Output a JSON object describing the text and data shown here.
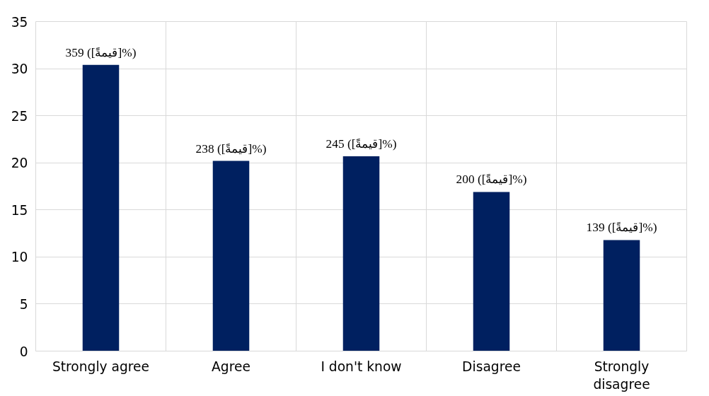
{
  "chart_data": {
    "type": "bar",
    "categories": [
      "Strongly agree",
      "Agree",
      "I don't know",
      "Disagree",
      "Strongly disagree"
    ],
    "values": [
      30.4,
      20.2,
      20.7,
      16.9,
      11.8
    ],
    "annotations": [
      {
        "text": "359 ([قيمةً]%)",
        "x": "Strongly agree",
        "y": 30.4
      },
      {
        "text": "238 ([قيمةً]%)",
        "x": "Agree",
        "y": 20.2
      },
      {
        "text": "245 ([قيمةً]%)",
        "x": "I don't know",
        "y": 20.7
      },
      {
        "text": "200 ([قيمةً]%)",
        "x": "Disagree",
        "y": 16.9
      },
      {
        "text": "139 ([قيمةً]%)",
        "x": "Strongly disagree",
        "y": 11.8
      }
    ],
    "color": "#002060",
    "ylim": [
      0,
      35
    ],
    "yticks": [
      0,
      5,
      10,
      15,
      20,
      25,
      30,
      35
    ],
    "grid": true
  }
}
